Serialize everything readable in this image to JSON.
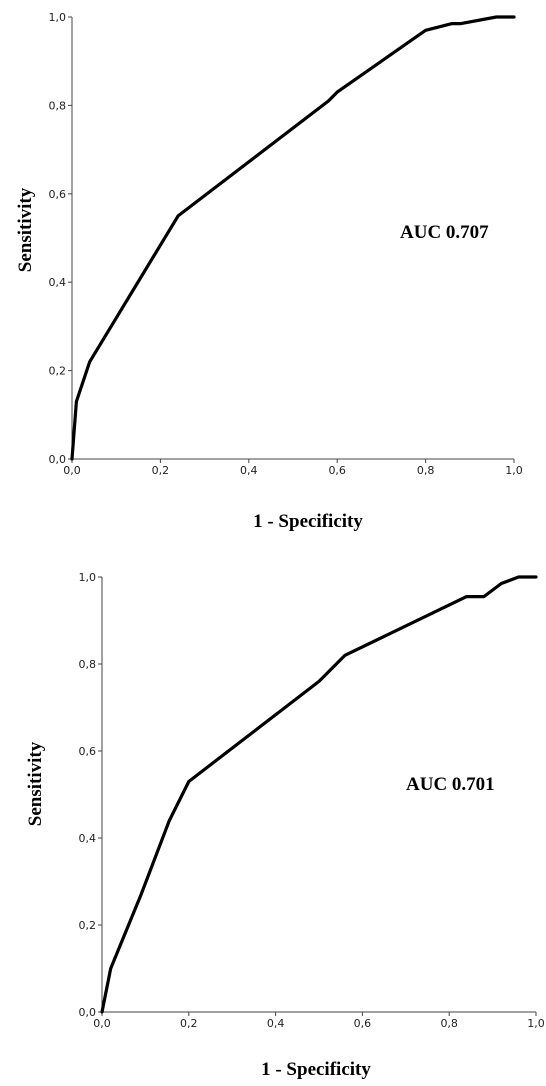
{
  "chart_data": [
    {
      "type": "line",
      "title": "",
      "xlabel": "1 - Specificity",
      "ylabel": "Sensitivity",
      "xlim": [
        0,
        1
      ],
      "ylim": [
        0,
        1
      ],
      "grid": false,
      "x_ticks": [
        "0,0",
        "0,2",
        "0,4",
        "0,6",
        "0,8",
        "1,0"
      ],
      "y_ticks": [
        "0,0",
        "0,2",
        "0,4",
        "0,6",
        "0,8",
        "1,0"
      ],
      "annotation": "AUC 0.707",
      "series": [
        {
          "x": [
            0.0,
            0.01,
            0.04,
            0.24,
            0.58,
            0.6,
            0.8,
            0.86,
            0.88,
            0.96,
            1.0
          ],
          "y": [
            0.0,
            0.13,
            0.22,
            0.55,
            0.81,
            0.83,
            0.97,
            0.985,
            0.985,
            1.0,
            1.0
          ]
        }
      ]
    },
    {
      "type": "line",
      "title": "",
      "xlabel": "1 - Specificity",
      "ylabel": "Sensitivity",
      "xlim": [
        0,
        1
      ],
      "ylim": [
        0,
        1
      ],
      "grid": false,
      "x_ticks": [
        "0,0",
        "0,2",
        "0,4",
        "0,6",
        "0,8",
        "1,0"
      ],
      "y_ticks": [
        "0,0",
        "0,2",
        "0,4",
        "0,6",
        "0,8",
        "1,0"
      ],
      "annotation": "AUC 0.701",
      "series": [
        {
          "x": [
            0.0,
            0.02,
            0.09,
            0.155,
            0.2,
            0.5,
            0.56,
            0.84,
            0.88,
            0.92,
            0.96,
            1.0
          ],
          "y": [
            0.0,
            0.1,
            0.27,
            0.44,
            0.53,
            0.76,
            0.82,
            0.955,
            0.955,
            0.985,
            1.0,
            1.0
          ]
        }
      ]
    }
  ]
}
